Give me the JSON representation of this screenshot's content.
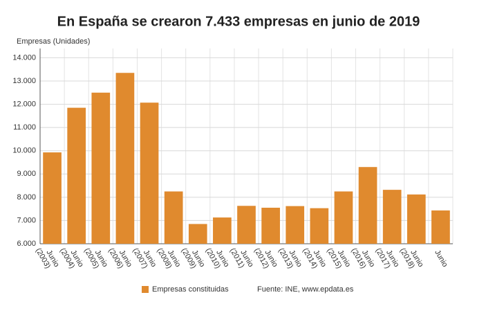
{
  "chart_data": {
    "type": "bar",
    "title": "En España se crearon 7.433 empresas en junio de 2019",
    "y_label": "Empresas (Unidades)",
    "categories": [
      "Junio (2003)",
      "Junio (2004)",
      "Junio (2005)",
      "Junio (2006)",
      "Junio (2007)",
      "Junio (2008)",
      "Junio (2009)",
      "Junio (2010)",
      "Junio (2011)",
      "Junio (2012)",
      "Junio (2013)",
      "Junio (2014)",
      "Junio (2015)",
      "Junio (2016)",
      "Junio (2017)",
      "Junio (2018)",
      "Junio"
    ],
    "series": [
      {
        "name": "Empresas constituidas",
        "color": "#e08a2e",
        "values": [
          9930,
          11850,
          12500,
          13350,
          12070,
          8250,
          6850,
          7130,
          7630,
          7550,
          7620,
          7530,
          8250,
          9300,
          8320,
          8120,
          7433
        ]
      }
    ],
    "source": "Fuente: INE, www.epdata.es",
    "ylim": [
      6000,
      14400
    ],
    "yticks": [
      {
        "value": 6000,
        "label": "6.000"
      },
      {
        "value": 7000,
        "label": "7.000"
      },
      {
        "value": 8000,
        "label": "8.000"
      },
      {
        "value": 9000,
        "label": "9.000"
      },
      {
        "value": 10000,
        "label": "10.000"
      },
      {
        "value": 11000,
        "label": "11.000"
      },
      {
        "value": 12000,
        "label": "12.000"
      },
      {
        "value": 13000,
        "label": "13.000"
      },
      {
        "value": 14000,
        "label": "14.000"
      }
    ],
    "grid": true
  }
}
